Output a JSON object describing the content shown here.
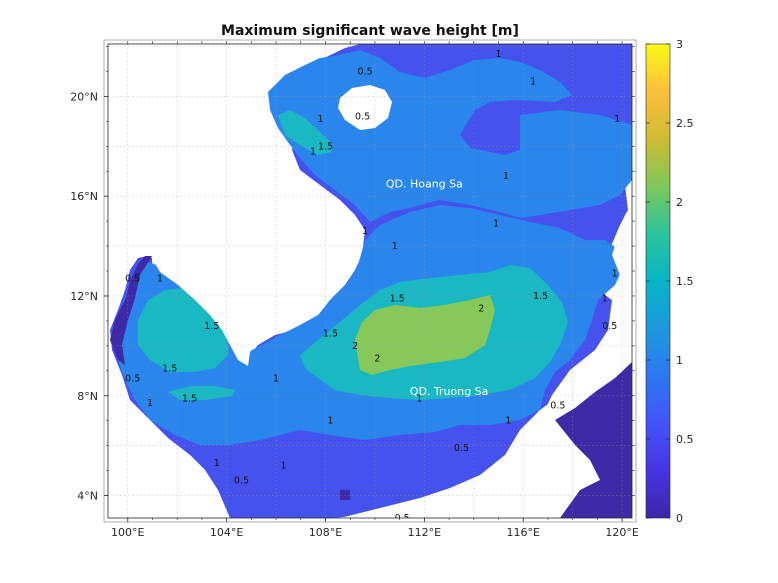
{
  "chart_data": {
    "type": "heatmap",
    "title": "Maximum significant wave height [m]",
    "xlabel": "",
    "ylabel": "",
    "x_ticks": [
      "100°E",
      "104°E",
      "108°E",
      "112°E",
      "116°E",
      "120°E"
    ],
    "x_tick_values": [
      100,
      104,
      108,
      112,
      116,
      120
    ],
    "y_ticks": [
      "4°N",
      "8°N",
      "12°N",
      "16°N",
      "20°N"
    ],
    "y_tick_values": [
      4,
      8,
      12,
      16,
      20
    ],
    "xlim": [
      99.2,
      120.4
    ],
    "ylim": [
      3.1,
      22.1
    ],
    "colorbar": {
      "ticks": [
        "0",
        "0.5",
        "1",
        "1.5",
        "2",
        "2.5",
        "3"
      ],
      "tick_values": [
        0,
        0.5,
        1,
        1.5,
        2,
        2.5,
        3
      ],
      "range": [
        0,
        3
      ],
      "colormap": "parula"
    },
    "grid": true,
    "place_labels": [
      {
        "text": "QD. Hoang Sa",
        "lon": 112.0,
        "lat": 16.5
      },
      {
        "text": "QD. Truong Sa",
        "lon": 113.0,
        "lat": 8.2
      }
    ],
    "contour_labels": [
      {
        "text": "1",
        "lon": 116.4,
        "lat": 20.6
      },
      {
        "text": "1",
        "lon": 115.0,
        "lat": 21.7
      },
      {
        "text": "1",
        "lon": 115.3,
        "lat": 16.8
      },
      {
        "text": "1",
        "lon": 119.8,
        "lat": 19.1
      },
      {
        "text": "1",
        "lon": 114.9,
        "lat": 14.9
      },
      {
        "text": "1",
        "lon": 110.8,
        "lat": 14.0
      },
      {
        "text": "1",
        "lon": 109.6,
        "lat": 14.6
      },
      {
        "text": "1",
        "lon": 107.5,
        "lat": 17.8
      },
      {
        "text": "1",
        "lon": 107.8,
        "lat": 19.1
      },
      {
        "text": "1",
        "lon": 119.7,
        "lat": 12.9
      },
      {
        "text": "1",
        "lon": 119.3,
        "lat": 11.9
      },
      {
        "text": "1",
        "lon": 111.8,
        "lat": 7.9
      },
      {
        "text": "1",
        "lon": 115.4,
        "lat": 7.0
      },
      {
        "text": "1",
        "lon": 108.2,
        "lat": 7.0
      },
      {
        "text": "1",
        "lon": 101.3,
        "lat": 12.7
      },
      {
        "text": "1",
        "lon": 106.0,
        "lat": 8.7
      },
      {
        "text": "1",
        "lon": 100.9,
        "lat": 7.7
      },
      {
        "text": "1",
        "lon": 106.3,
        "lat": 5.2
      },
      {
        "text": "1",
        "lon": 103.6,
        "lat": 5.3
      },
      {
        "text": "1.5",
        "lon": 108.0,
        "lat": 18.0
      },
      {
        "text": "1.5",
        "lon": 110.9,
        "lat": 11.9
      },
      {
        "text": "1.5",
        "lon": 108.2,
        "lat": 10.5
      },
      {
        "text": "1.5",
        "lon": 116.7,
        "lat": 12.0
      },
      {
        "text": "1.5",
        "lon": 103.4,
        "lat": 10.8
      },
      {
        "text": "1.5",
        "lon": 101.7,
        "lat": 9.1
      },
      {
        "text": "1.5",
        "lon": 102.5,
        "lat": 7.9
      },
      {
        "text": "2",
        "lon": 114.3,
        "lat": 11.5
      },
      {
        "text": "2",
        "lon": 109.2,
        "lat": 10.0
      },
      {
        "text": "2",
        "lon": 110.1,
        "lat": 9.5
      },
      {
        "text": "0.5",
        "lon": 109.6,
        "lat": 21.0
      },
      {
        "text": "0.5",
        "lon": 109.5,
        "lat": 19.2
      },
      {
        "text": "0.5",
        "lon": 100.2,
        "lat": 12.7
      },
      {
        "text": "0.5",
        "lon": 100.2,
        "lat": 8.7
      },
      {
        "text": "0.5",
        "lon": 119.5,
        "lat": 10.8
      },
      {
        "text": "0.5",
        "lon": 117.4,
        "lat": 7.6
      },
      {
        "text": "0.5",
        "lon": 113.5,
        "lat": 5.9
      },
      {
        "text": "0.5",
        "lon": 104.6,
        "lat": 4.6
      },
      {
        "text": "0.5",
        "lon": 111.1,
        "lat": 3.1
      }
    ]
  }
}
